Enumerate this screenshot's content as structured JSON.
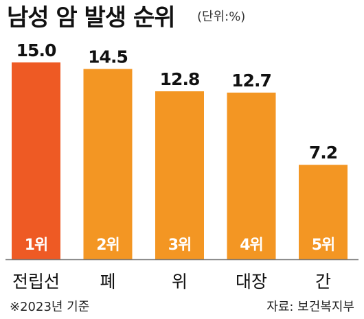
{
  "chart_data": {
    "type": "bar",
    "title": "남성 암 발생 순위",
    "unit": "(단위:%)",
    "categories": [
      "전립선",
      "폐",
      "위",
      "대장",
      "간"
    ],
    "ranks": [
      "1위",
      "2위",
      "3위",
      "4위",
      "5위"
    ],
    "values": [
      15.0,
      14.5,
      12.8,
      12.7,
      7.2
    ],
    "value_labels": [
      "15.0",
      "14.5",
      "12.8",
      "12.7",
      "7.2"
    ],
    "ylim": [
      0,
      15.0
    ],
    "grid": false,
    "colors": {
      "highlight": "#ee5a24",
      "bar": "#f39623",
      "axis": "#777777",
      "rank_text": "#ffffff"
    }
  },
  "footnote": "※2023년 기준",
  "source": "자료: 보건복지부"
}
